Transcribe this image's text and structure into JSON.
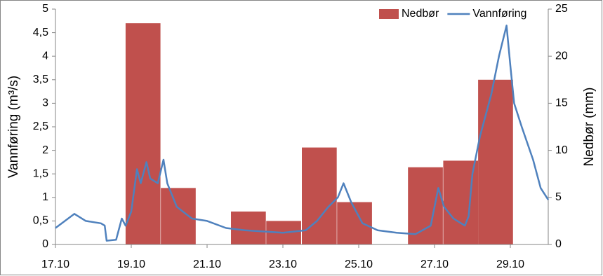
{
  "chart_data": {
    "type": "bar-line",
    "ylabel": "Vannføring (m³/s)",
    "y2label": "Nedbør (mm)",
    "xlim": [
      17,
      30
    ],
    "xticks": [
      {
        "value": 17,
        "label": "17.10"
      },
      {
        "value": 19,
        "label": "19.10"
      },
      {
        "value": 21,
        "label": "21.10"
      },
      {
        "value": 23,
        "label": "23.10"
      },
      {
        "value": 25,
        "label": "25.10"
      },
      {
        "value": 27,
        "label": "27.10"
      },
      {
        "value": 29,
        "label": "29.10"
      }
    ],
    "ylim": [
      0,
      5
    ],
    "yticks": [
      0,
      {
        "value": 0.5,
        "label": "0,5"
      },
      1,
      {
        "value": 1.5,
        "label": "1,5"
      },
      2,
      {
        "value": 2.5,
        "label": "2,5"
      },
      3,
      {
        "value": 3.5,
        "label": "3,5"
      },
      4,
      {
        "value": 4.5,
        "label": "4,5"
      },
      5
    ],
    "y2lim": [
      0,
      25
    ],
    "y2ticks": [
      0,
      5,
      10,
      15,
      20,
      25
    ],
    "legend": "top-right",
    "series": [
      {
        "name": "Nedbør",
        "type": "bar",
        "axis": "y2",
        "color": "#c0504d",
        "x": [
          19.31,
          20.24,
          22.09,
          23.02,
          23.96,
          24.89,
          26.76,
          27.69,
          28.61
        ],
        "values": [
          23.5,
          6,
          3.5,
          2.5,
          10.3,
          4.5,
          8.2,
          8.9,
          17.5
        ]
      },
      {
        "name": "Vannføring",
        "type": "line",
        "color": "#4f81bd",
        "x": [
          17.0,
          17.5,
          17.8,
          18.2,
          18.3,
          18.35,
          18.6,
          18.75,
          18.85,
          19.0,
          19.15,
          19.25,
          19.4,
          19.5,
          19.7,
          19.85,
          19.95,
          20.2,
          20.6,
          21.0,
          21.5,
          22.0,
          23.0,
          23.6,
          23.9,
          24.2,
          24.45,
          24.6,
          24.8,
          25.1,
          25.5,
          26.0,
          26.5,
          26.9,
          27.1,
          27.25,
          27.5,
          27.8,
          27.9,
          28.0,
          28.2,
          28.5,
          28.7,
          28.9,
          29.0,
          29.1,
          29.3,
          29.6,
          29.8,
          30.0
        ],
        "values": [
          0.35,
          0.65,
          0.5,
          0.45,
          0.4,
          0.08,
          0.1,
          0.55,
          0.4,
          0.7,
          1.6,
          1.3,
          1.75,
          1.4,
          1.3,
          1.8,
          1.3,
          0.8,
          0.55,
          0.5,
          0.35,
          0.3,
          0.25,
          0.3,
          0.5,
          0.8,
          1.0,
          1.3,
          0.9,
          0.45,
          0.3,
          0.25,
          0.22,
          0.4,
          1.2,
          0.8,
          0.55,
          0.4,
          0.6,
          1.5,
          2.3,
          3.2,
          4.0,
          4.65,
          3.8,
          3.0,
          2.5,
          1.8,
          1.2,
          0.95
        ]
      }
    ]
  }
}
